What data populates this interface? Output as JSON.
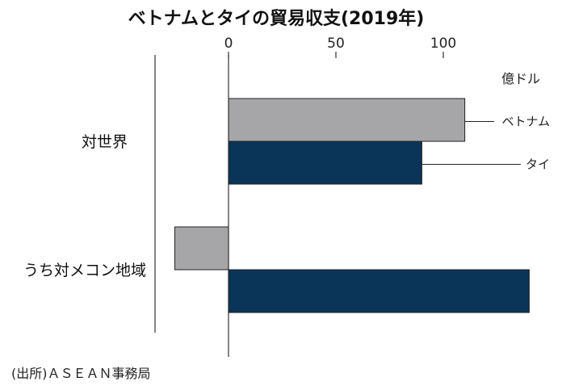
{
  "title": "ベトナムとタイの貿易収支(2019年)",
  "source": "(出所)ＡＳＥＡＮ事務局",
  "colors": {
    "ベトナム": "#a6a6a8",
    "タイ": "#0b3558",
    "axis": "#333333"
  },
  "chart_data": {
    "type": "bar",
    "orientation": "horizontal",
    "title": "ベトナムとタイの貿易収支(2019年)",
    "unit": "億ドル",
    "categories": [
      "対世界",
      "うち対メコン地域"
    ],
    "series": [
      {
        "name": "ベトナム",
        "values": [
          110,
          -25
        ]
      },
      {
        "name": "タイ",
        "values": [
          90,
          140
        ]
      }
    ],
    "xlim": [
      -30,
      140
    ],
    "xticks": [
      "0",
      "50",
      "100"
    ],
    "xtick_values": [
      0,
      50,
      100
    ],
    "grid": false,
    "legend": "right, leader lines"
  }
}
